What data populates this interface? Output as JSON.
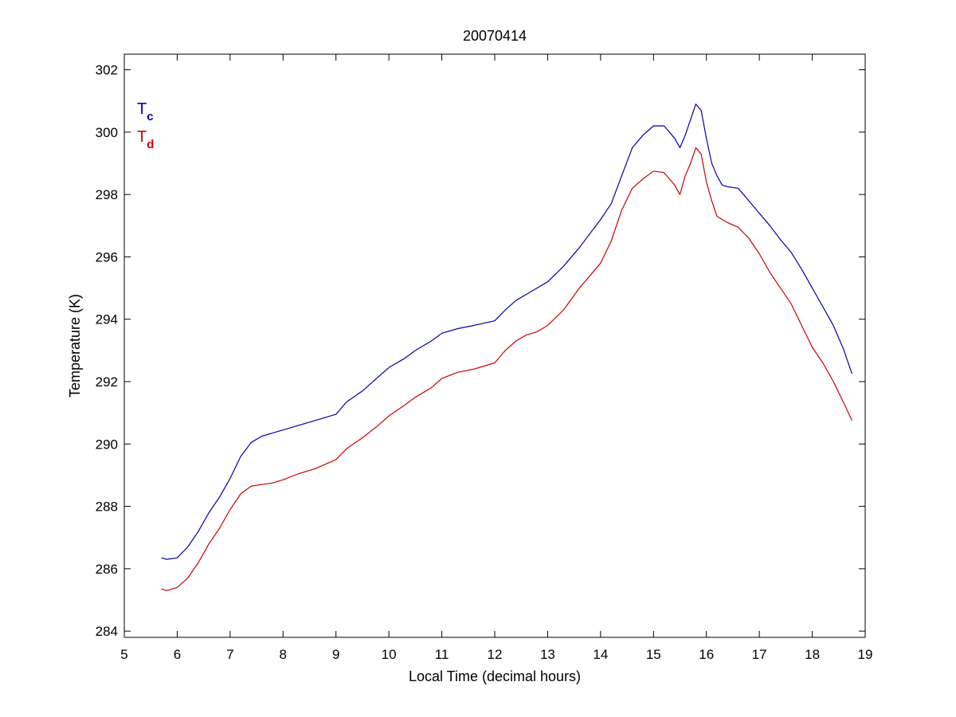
{
  "chart_data": {
    "type": "line",
    "title": "20070414",
    "xlabel": "Local Time (decimal hours)",
    "ylabel": "Temperature (K)",
    "xlim": [
      5,
      19
    ],
    "ylim": [
      283.8,
      302.5
    ],
    "x_ticks": [
      5,
      6,
      7,
      8,
      9,
      10,
      11,
      12,
      13,
      14,
      15,
      16,
      17,
      18,
      19
    ],
    "y_ticks": [
      284,
      286,
      288,
      290,
      292,
      294,
      296,
      298,
      300,
      302
    ],
    "grid": false,
    "legend_position": "top-left",
    "series": [
      {
        "name": "T",
        "subscript": "c",
        "color": "#0000aa",
        "x": [
          5.7,
          5.8,
          6.0,
          6.2,
          6.4,
          6.6,
          6.8,
          7.0,
          7.2,
          7.4,
          7.6,
          7.8,
          8.0,
          8.3,
          8.6,
          9.0,
          9.2,
          9.5,
          9.8,
          10.0,
          10.3,
          10.5,
          10.8,
          11.0,
          11.3,
          11.6,
          12.0,
          12.2,
          12.4,
          12.6,
          12.8,
          13.0,
          13.3,
          13.6,
          14.0,
          14.2,
          14.4,
          14.6,
          14.8,
          15.0,
          15.2,
          15.4,
          15.5,
          15.6,
          15.7,
          15.8,
          15.9,
          16.0,
          16.1,
          16.2,
          16.3,
          16.4,
          16.6,
          16.8,
          17.0,
          17.2,
          17.4,
          17.6,
          17.8,
          18.0,
          18.2,
          18.4,
          18.6,
          18.75
        ],
        "y": [
          286.35,
          286.3,
          286.35,
          286.7,
          287.2,
          287.8,
          288.3,
          288.9,
          289.6,
          290.05,
          290.25,
          290.35,
          290.45,
          290.6,
          290.75,
          290.95,
          291.35,
          291.7,
          292.15,
          292.45,
          292.75,
          293.0,
          293.3,
          293.55,
          293.7,
          293.8,
          293.95,
          294.3,
          294.6,
          294.8,
          295.0,
          295.2,
          295.7,
          296.3,
          297.2,
          297.7,
          298.6,
          299.5,
          299.9,
          300.2,
          300.2,
          299.8,
          299.5,
          299.9,
          300.4,
          300.9,
          300.7,
          299.8,
          299.0,
          298.6,
          298.3,
          298.25,
          298.2,
          297.8,
          297.4,
          297.0,
          296.55,
          296.15,
          295.6,
          295.0,
          294.4,
          293.8,
          293.0,
          292.25
        ]
      },
      {
        "name": "T",
        "subscript": "d",
        "color": "#cc0000",
        "x": [
          5.7,
          5.8,
          6.0,
          6.2,
          6.4,
          6.6,
          6.8,
          7.0,
          7.2,
          7.4,
          7.6,
          7.8,
          8.0,
          8.3,
          8.6,
          9.0,
          9.2,
          9.5,
          9.8,
          10.0,
          10.3,
          10.5,
          10.8,
          11.0,
          11.3,
          11.6,
          12.0,
          12.2,
          12.4,
          12.6,
          12.8,
          13.0,
          13.3,
          13.6,
          14.0,
          14.2,
          14.4,
          14.6,
          14.8,
          15.0,
          15.2,
          15.4,
          15.5,
          15.6,
          15.7,
          15.8,
          15.9,
          16.0,
          16.1,
          16.2,
          16.3,
          16.4,
          16.6,
          16.8,
          17.0,
          17.2,
          17.4,
          17.6,
          17.8,
          18.0,
          18.2,
          18.4,
          18.6,
          18.75
        ],
        "y": [
          285.35,
          285.3,
          285.4,
          285.7,
          286.2,
          286.8,
          287.3,
          287.9,
          288.4,
          288.65,
          288.7,
          288.75,
          288.85,
          289.05,
          289.2,
          289.5,
          289.85,
          290.2,
          290.6,
          290.9,
          291.25,
          291.5,
          291.8,
          292.1,
          292.3,
          292.4,
          292.6,
          293.0,
          293.3,
          293.5,
          293.6,
          293.8,
          294.3,
          295.0,
          295.8,
          296.5,
          297.5,
          298.2,
          298.5,
          298.75,
          298.7,
          298.3,
          298.0,
          298.6,
          299.0,
          299.5,
          299.3,
          298.4,
          297.8,
          297.3,
          297.2,
          297.1,
          296.95,
          296.6,
          296.1,
          295.5,
          295.0,
          294.5,
          293.8,
          293.1,
          292.6,
          292.0,
          291.3,
          290.75
        ]
      }
    ]
  }
}
